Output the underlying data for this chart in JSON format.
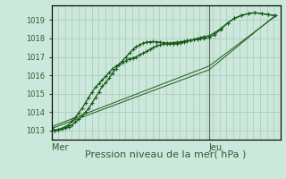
{
  "title": "Pression niveau de la mer( hPa )",
  "bg_color": "#cce8dc",
  "grid_color": "#aac8b8",
  "line_color": "#1a5c1a",
  "axis_color": "#2d5c2d",
  "vline_color": "#556655",
  "ylim": [
    1012.5,
    1019.8
  ],
  "yticks": [
    1013,
    1014,
    1015,
    1016,
    1017,
    1018,
    1019
  ],
  "xlim": [
    0.0,
    1.35
  ],
  "x_tick_positions": [
    0.0,
    0.93
  ],
  "x_tick_labels": [
    "Mer",
    "Jeu"
  ],
  "vline_x": 0.93,
  "line1_x": [
    0.0,
    0.02,
    0.04,
    0.06,
    0.08,
    0.1,
    0.12,
    0.14,
    0.16,
    0.18,
    0.2,
    0.22,
    0.24,
    0.26,
    0.28,
    0.3,
    0.32,
    0.34,
    0.36,
    0.38,
    0.4,
    0.42,
    0.44,
    0.46,
    0.48,
    0.5,
    0.52,
    0.54,
    0.56,
    0.58,
    0.6,
    0.62,
    0.64,
    0.66,
    0.68,
    0.7,
    0.72,
    0.74,
    0.76,
    0.78,
    0.8,
    0.82,
    0.84,
    0.86,
    0.88,
    0.9,
    0.93,
    0.96,
    1.0,
    1.04,
    1.08,
    1.12,
    1.16,
    1.2,
    1.24,
    1.28,
    1.32
  ],
  "line1_y": [
    1013.1,
    1013.0,
    1013.05,
    1013.1,
    1013.15,
    1013.2,
    1013.3,
    1013.45,
    1013.6,
    1013.8,
    1014.0,
    1014.2,
    1014.5,
    1014.8,
    1015.1,
    1015.4,
    1015.6,
    1015.85,
    1016.1,
    1016.35,
    1016.6,
    1016.8,
    1017.0,
    1017.2,
    1017.4,
    1017.55,
    1017.65,
    1017.75,
    1017.8,
    1017.82,
    1017.83,
    1017.82,
    1017.8,
    1017.78,
    1017.75,
    1017.73,
    1017.72,
    1017.73,
    1017.75,
    1017.8,
    1017.85,
    1017.9,
    1017.95,
    1018.0,
    1018.05,
    1018.1,
    1018.15,
    1018.3,
    1018.55,
    1018.85,
    1019.1,
    1019.25,
    1019.35,
    1019.4,
    1019.35,
    1019.3,
    1019.25
  ],
  "line2_x": [
    0.0,
    0.02,
    0.04,
    0.06,
    0.08,
    0.1,
    0.12,
    0.14,
    0.16,
    0.18,
    0.2,
    0.22,
    0.24,
    0.26,
    0.28,
    0.3,
    0.32,
    0.34,
    0.36,
    0.38,
    0.4,
    0.42,
    0.44,
    0.46,
    0.48,
    0.5,
    0.52,
    0.54,
    0.56,
    0.58,
    0.6,
    0.62,
    0.64,
    0.66,
    0.68,
    0.7,
    0.72,
    0.74,
    0.76,
    0.78,
    0.8,
    0.82,
    0.84,
    0.86,
    0.88,
    0.9,
    0.93,
    0.96,
    1.0,
    1.04,
    1.08,
    1.12,
    1.16,
    1.2,
    1.24,
    1.28,
    1.32
  ],
  "line2_y": [
    1013.2,
    1013.0,
    1013.05,
    1013.1,
    1013.2,
    1013.3,
    1013.5,
    1013.7,
    1013.95,
    1014.2,
    1014.5,
    1014.8,
    1015.1,
    1015.35,
    1015.55,
    1015.75,
    1015.95,
    1016.15,
    1016.35,
    1016.5,
    1016.6,
    1016.7,
    1016.8,
    1016.9,
    1016.95,
    1017.0,
    1017.1,
    1017.2,
    1017.3,
    1017.4,
    1017.5,
    1017.6,
    1017.65,
    1017.7,
    1017.73,
    1017.75,
    1017.78,
    1017.8,
    1017.82,
    1017.85,
    1017.88,
    1017.9,
    1017.93,
    1017.95,
    1017.98,
    1018.0,
    1018.05,
    1018.2,
    1018.5,
    1018.85,
    1019.1,
    1019.25,
    1019.35,
    1019.4,
    1019.35,
    1019.3,
    1019.25
  ],
  "line3_x": [
    0.0,
    0.93,
    1.32
  ],
  "line3_y": [
    1013.1,
    1016.3,
    1019.25
  ],
  "line4_x": [
    0.0,
    0.93,
    1.32
  ],
  "line4_y": [
    1013.2,
    1016.5,
    1019.2
  ],
  "n_xgrid": 34
}
